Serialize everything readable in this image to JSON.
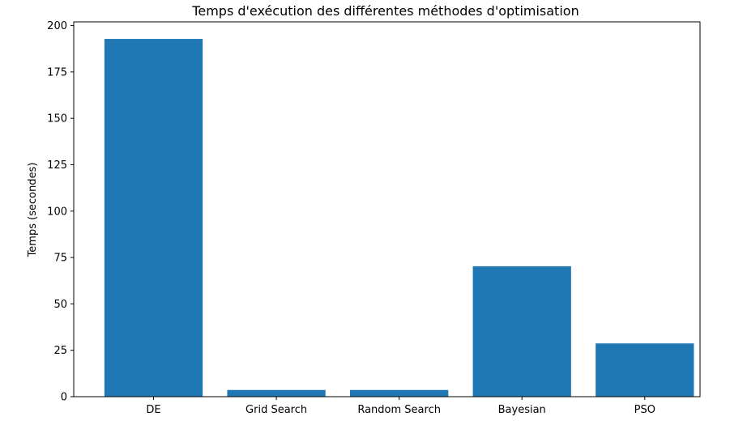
{
  "chart_data": {
    "type": "bar",
    "title": "Temps d'exécution des différentes méthodes d'optimisation",
    "xlabel": "",
    "ylabel": "Temps (secondes)",
    "categories": [
      "DE",
      "Grid Search",
      "Random Search",
      "Bayesian",
      "PSO"
    ],
    "values": [
      192.8,
      3.6,
      3.6,
      70.3,
      28.7
    ],
    "ylim": [
      0,
      202
    ],
    "yticks": [
      0,
      25,
      50,
      75,
      100,
      125,
      150,
      175,
      200
    ],
    "ytick_labels": [
      "0",
      "25",
      "50",
      "75",
      "100",
      "125",
      "150",
      "175",
      "200"
    ],
    "bar_color": "#1f77b4",
    "grid": false,
    "legend": false
  }
}
